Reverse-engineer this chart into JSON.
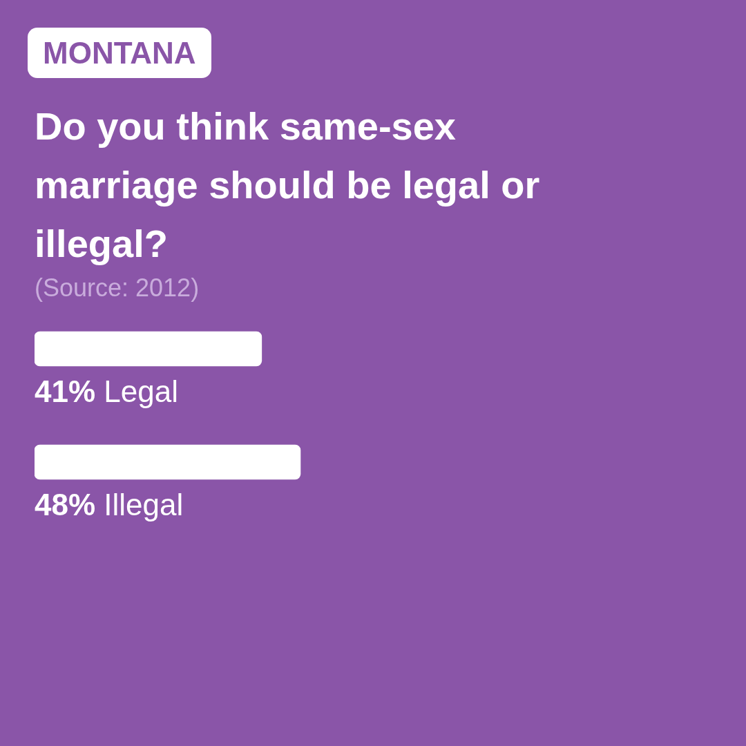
{
  "chart_data": {
    "type": "bar",
    "orientation": "horizontal",
    "subtitle": "MONTANA",
    "title": "Do you think same-sex marriage should be legal or illegal?",
    "annotations": [
      "(Source: 2012)"
    ],
    "categories": [
      "Legal",
      "Illegal"
    ],
    "values": [
      41,
      48
    ],
    "value_labels": [
      "41%",
      "48%"
    ],
    "color": "#ffffff",
    "legend": false,
    "tick_labels": false
  }
}
